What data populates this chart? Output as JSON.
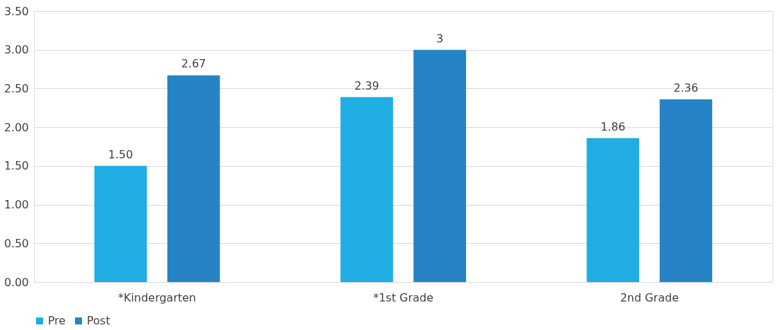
{
  "chart_data": {
    "type": "bar",
    "categories": [
      "*Kindergarten",
      "*1st Grade",
      "2nd Grade"
    ],
    "series": [
      {
        "name": "Pre",
        "color": "#1fade4",
        "values": [
          1.5,
          2.39,
          1.86
        ],
        "value_labels": [
          "1.50",
          "2.39",
          "1.86"
        ]
      },
      {
        "name": "Post",
        "color": "#2683c6",
        "values": [
          2.67,
          3,
          2.36
        ],
        "value_labels": [
          "2.67",
          "3",
          "2.36"
        ]
      }
    ],
    "ylim": [
      0,
      3.5
    ],
    "yticks": [
      {
        "value": 0,
        "label": "0.00"
      },
      {
        "value": 0.5,
        "label": "0.50"
      },
      {
        "value": 1,
        "label": "1.00"
      },
      {
        "value": 1.5,
        "label": "1.50"
      },
      {
        "value": 2,
        "label": "2.00"
      },
      {
        "value": 2.5,
        "label": "2.50"
      },
      {
        "value": 3,
        "label": "3.00"
      },
      {
        "value": 3.5,
        "label": "3.50"
      }
    ],
    "grid": "y",
    "legend": "bottom"
  }
}
